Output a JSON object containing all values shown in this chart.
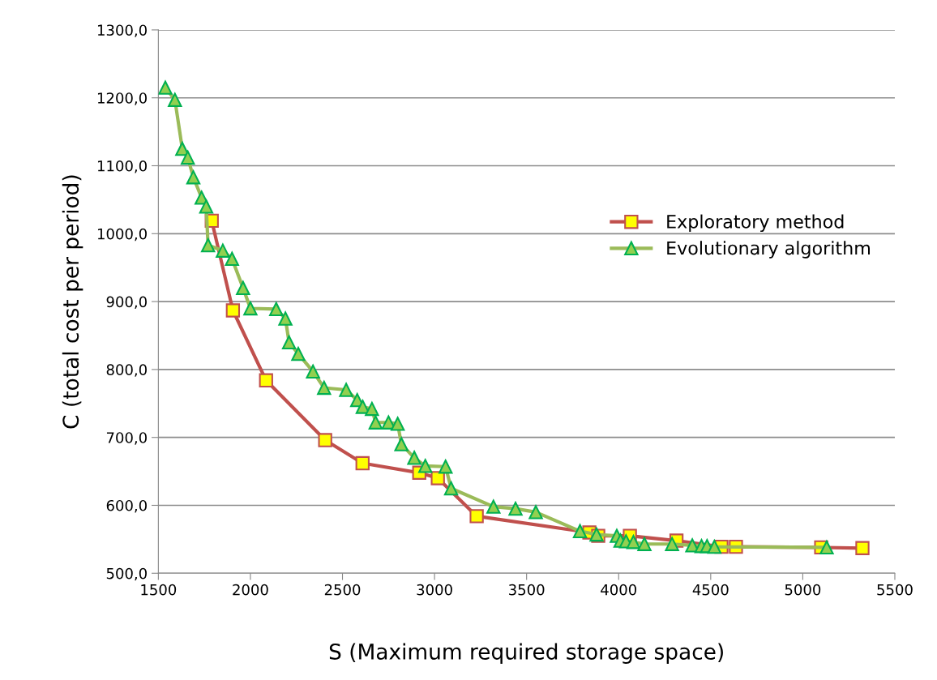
{
  "chart_data": {
    "type": "line",
    "xlabel": "S (Maximum required storage space)",
    "ylabel": "C (total cost per period)",
    "xlim": [
      1500,
      5500
    ],
    "xticks": [
      1500,
      2000,
      2500,
      3000,
      3500,
      4000,
      4500,
      5000,
      5500
    ],
    "ylim": [
      500,
      1300
    ],
    "yticks": [
      {
        "value": 500,
        "label": "500,0"
      },
      {
        "value": 600,
        "label": "600,0"
      },
      {
        "value": 700,
        "label": "700,0"
      },
      {
        "value": 800,
        "label": "800,0"
      },
      {
        "value": 900,
        "label": "900,0"
      },
      {
        "value": 1000,
        "label": "1000,0"
      },
      {
        "value": 1100,
        "label": "1100,0"
      },
      {
        "value": 1200,
        "label": "1200,0"
      },
      {
        "value": 1300,
        "label": "1300,0"
      }
    ],
    "grid": "y",
    "legend": "right",
    "series": [
      {
        "name": "Exploratory method",
        "color": "#c0504d",
        "marker": "square",
        "x": [
          1790,
          1905,
          2085,
          2406,
          2609,
          2917,
          3018,
          3229,
          3841,
          3889,
          4061,
          4314,
          4558,
          4637,
          5100,
          5324
        ],
        "values": [
          1019,
          887,
          784,
          696,
          662,
          648,
          640,
          584,
          560,
          555,
          555,
          548,
          539,
          539,
          538,
          537
        ]
      },
      {
        "name": "Evolutionary algorithm",
        "color": "#9bbb59",
        "marker": "triangle",
        "x": [
          1538,
          1590,
          1630,
          1660,
          1690,
          1735,
          1760,
          1770,
          1850,
          1900,
          1960,
          2000,
          2140,
          2190,
          2210,
          2260,
          2340,
          2400,
          2520,
          2580,
          2610,
          2660,
          2680,
          2750,
          2800,
          2820,
          2890,
          2950,
          3060,
          3090,
          3320,
          3440,
          3550,
          3790,
          3880,
          3990,
          4010,
          4040,
          4080,
          4140,
          4290,
          4400,
          4450,
          4480,
          4520,
          5130
        ],
        "values": [
          1215,
          1197,
          1125,
          1112,
          1083,
          1053,
          1040,
          983,
          975,
          963,
          920,
          890,
          889,
          875,
          840,
          823,
          797,
          773,
          770,
          755,
          745,
          742,
          722,
          722,
          720,
          690,
          670,
          658,
          657,
          625,
          598,
          595,
          590,
          562,
          557,
          555,
          548,
          547,
          546,
          543,
          543,
          541,
          540,
          540,
          539,
          538
        ]
      }
    ]
  }
}
